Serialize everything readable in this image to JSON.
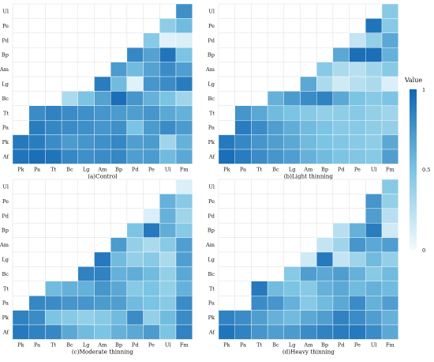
{
  "chart_data": {
    "type": "heatmap",
    "row_labels": [
      "Ul",
      "Pe",
      "Pd",
      "Bp",
      "Am",
      "Lg",
      "Bc",
      "Tt",
      "Pa",
      "Pk",
      "Af"
    ],
    "col_labels": [
      "Pk",
      "Pa",
      "Tt",
      "Bc",
      "Lg",
      "Am",
      "Bp",
      "Pd",
      "Pe",
      "Ul",
      "Fm"
    ],
    "colorbar": {
      "title": "Value",
      "ticks": [
        "1",
        "0.5",
        "0"
      ],
      "range": [
        0,
        1
      ],
      "low_color": "#f3fafd",
      "high_color": "#0f66b2"
    },
    "panels": [
      {
        "caption": "(a)Control",
        "values": [
          [
            0.78
          ],
          [
            0.42,
            0.55
          ],
          [
            0.45,
            0.08,
            0.1
          ],
          [
            0.82,
            0.68,
            0.92,
            0.5
          ],
          [
            0.72,
            0.55,
            0.68,
            0.8,
            0.7
          ],
          [
            0.88,
            0.55,
            0.08,
            0.75,
            0.8,
            0.88
          ],
          [
            0.3,
            0.5,
            0.68,
            0.95,
            0.75,
            0.6,
            0.5,
            0.35
          ],
          [
            0.8,
            0.85,
            0.8,
            0.78,
            0.75,
            0.72,
            0.7,
            0.75,
            0.65,
            0.6
          ],
          [
            0.88,
            0.82,
            0.8,
            0.78,
            0.75,
            0.78,
            0.5,
            0.72,
            0.8,
            0.72
          ],
          [
            0.9,
            0.88,
            0.8,
            0.72,
            0.75,
            0.78,
            0.82,
            0.7,
            0.72,
            0.35,
            0.6
          ],
          [
            0.92,
            0.95,
            0.92,
            0.82,
            0.78,
            0.8,
            0.82,
            0.7,
            0.72,
            0.55,
            0.65
          ]
        ]
      },
      {
        "caption": "(b)Light thinning",
        "values": [
          [
            0.45
          ],
          [
            0.92,
            0.45
          ],
          [
            0.2,
            0.4,
            0.65
          ],
          [
            0.65,
            0.95,
            0.95,
            0.6
          ],
          [
            0.45,
            0.3,
            0.25,
            0.35,
            0.45
          ],
          [
            0.65,
            0.3,
            0.15,
            0.25,
            0.3,
            0.1
          ],
          [
            0.6,
            0.72,
            0.8,
            0.85,
            0.65,
            0.5,
            0.45,
            0.5
          ],
          [
            0.75,
            0.65,
            0.55,
            0.5,
            0.45,
            0.4,
            0.42,
            0.45,
            0.4,
            0.35
          ],
          [
            0.88,
            0.8,
            0.7,
            0.62,
            0.55,
            0.5,
            0.45,
            0.45,
            0.42,
            0.4
          ],
          [
            0.9,
            0.82,
            0.75,
            0.7,
            0.65,
            0.55,
            0.5,
            0.48,
            0.45,
            0.42,
            0.65
          ],
          [
            0.95,
            0.88,
            0.8,
            0.75,
            0.7,
            0.6,
            0.55,
            0.5,
            0.48,
            0.45,
            0.7
          ]
        ]
      },
      {
        "caption": "(c)Moderate thinning",
        "values": [
          [
            0.1
          ],
          [
            0.6,
            0.45
          ],
          [
            0.1,
            0.6,
            0.35
          ],
          [
            0.5,
            0.9,
            0.62,
            0.45
          ],
          [
            0.72,
            0.4,
            0.3,
            0.45,
            0.7
          ],
          [
            0.9,
            0.55,
            0.4,
            0.45,
            0.3,
            0.7
          ],
          [
            0.85,
            0.85,
            0.6,
            0.62,
            0.55,
            0.4,
            0.65
          ],
          [
            0.55,
            0.6,
            0.6,
            0.75,
            0.65,
            0.45,
            0.5,
            0.4,
            0.6
          ],
          [
            0.82,
            0.8,
            0.75,
            0.75,
            0.72,
            0.7,
            0.55,
            0.5,
            0.45,
            0.8
          ],
          [
            0.85,
            0.8,
            0.5,
            0.45,
            0.4,
            0.45,
            0.55,
            0.8,
            0.4,
            0.55,
            0.8
          ],
          [
            0.9,
            0.85,
            0.82,
            0.65,
            0.55,
            0.5,
            0.6,
            0.65,
            0.72,
            0.5,
            0.85
          ]
        ]
      },
      {
        "caption": "(d)Heavy thinning",
        "values": [
          [
            0.45
          ],
          [
            0.75,
            0.4
          ],
          [
            0.7,
            0.25
          ],
          [
            0.25,
            0.6,
            0.88,
            0.15
          ],
          [
            0.2,
            0.35,
            0.75,
            0.65,
            0.7
          ],
          [
            0.15,
            0.9,
            0.2,
            0.35,
            0.55,
            0.4
          ],
          [
            0.45,
            0.7,
            0.65,
            0.7,
            0.6,
            0.45,
            0.55
          ],
          [
            0.9,
            0.55,
            0.5,
            0.45,
            0.6,
            0.65,
            0.55,
            0.6,
            0.55
          ],
          [
            0.8,
            0.75,
            0.6,
            0.45,
            0.55,
            0.65,
            0.8,
            0.6,
            0.7
          ],
          [
            0.85,
            0.8,
            0.7,
            0.6,
            0.55,
            0.65,
            0.7,
            0.85,
            0.8,
            0.7,
            0.6
          ],
          [
            0.92,
            0.85,
            0.75,
            0.7,
            0.72,
            0.8,
            0.85,
            0.88,
            0.9,
            0.8,
            0.65
          ]
        ]
      }
    ]
  }
}
